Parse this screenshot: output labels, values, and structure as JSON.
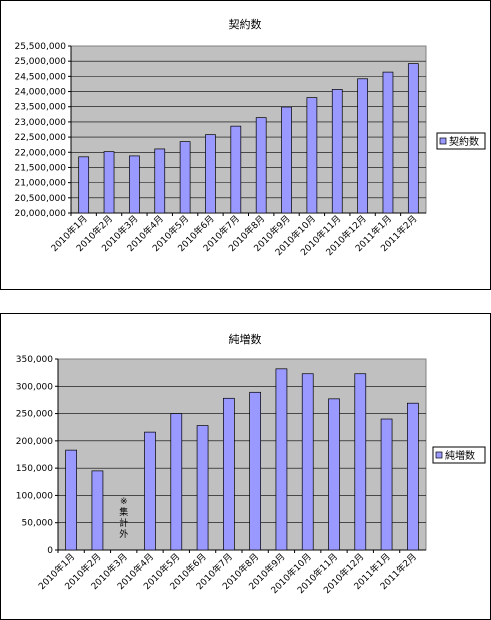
{
  "chart_data": [
    {
      "type": "bar",
      "title": "契約数",
      "categories": [
        "2010年1月",
        "2010年2月",
        "2010年3月",
        "2010年4月",
        "2010年5月",
        "2010年6月",
        "2010年7月",
        "2010年8月",
        "2010年9月",
        "2010年10月",
        "2010年11月",
        "2010年12月",
        "2011年1月",
        "2011年2月"
      ],
      "series": [
        {
          "name": "契約数",
          "values": [
            21850000,
            22020000,
            21880000,
            22110000,
            22350000,
            22580000,
            22860000,
            23140000,
            23490000,
            23800000,
            24070000,
            24420000,
            24640000,
            24920000
          ]
        }
      ],
      "yticks": [
        "20,000,000",
        "20,500,000",
        "21,000,000",
        "21,500,000",
        "22,000,000",
        "22,500,000",
        "23,000,000",
        "23,500,000",
        "24,000,000",
        "24,500,000",
        "25,000,000",
        "25,500,000"
      ],
      "ylim": [
        20000000,
        25500000
      ],
      "grid": true,
      "legend_position": "right",
      "colors": {
        "bar": "#9999ff",
        "plot_bg": "#c0c0c0",
        "bar_edge": "#000000"
      }
    },
    {
      "type": "bar",
      "title": "純増数",
      "categories": [
        "2010年1月",
        "2010年2月",
        "2010年3月",
        "2010年4月",
        "2010年5月",
        "2010年6月",
        "2010年7月",
        "2010年8月",
        "2010年9月",
        "2010年10月",
        "2010年11月",
        "2010年12月",
        "2011年1月",
        "2011年2月"
      ],
      "series": [
        {
          "name": "純増数",
          "values": [
            183000,
            145000,
            null,
            216000,
            250000,
            228000,
            278000,
            289000,
            332000,
            323000,
            277000,
            323000,
            240000,
            269000
          ]
        }
      ],
      "yticks": [
        "0",
        "50,000",
        "100,000",
        "150,000",
        "200,000",
        "250,000",
        "300,000",
        "350,000"
      ],
      "ylim": [
        0,
        350000
      ],
      "grid": true,
      "legend_position": "right",
      "annotation": "※集計外",
      "colors": {
        "bar": "#9999ff",
        "plot_bg": "#c0c0c0",
        "bar_edge": "#000000"
      }
    }
  ]
}
